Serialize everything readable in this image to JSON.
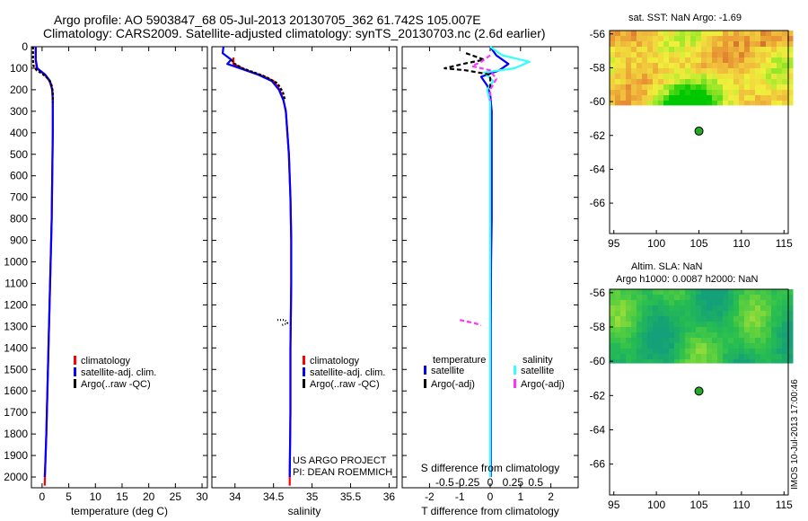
{
  "title_line1": "Argo profile: AO 5903847_68 05-Jul-2013 20130705_362 61.742S 105.007E",
  "title_line2": "Climatology: CARS2009. Satellite-adjusted climatology: synTS_20130703.nc (2.6d earlier)",
  "credit_line1": "US ARGO PROJECT",
  "credit_line2": "PI: DEAN ROEMMICH",
  "stamp": "IMOS 10-Jul-2013 17:00:46",
  "colors": {
    "climatology": "#ff0000",
    "satellite": "#0000ff",
    "argo": "#000000",
    "sal_satellite": "#33ffff",
    "sal_argo": "#ff33ff",
    "float": "#22aa22"
  },
  "chart_data": [
    {
      "type": "line",
      "id": "temperature",
      "xlabel": "temperature (deg C)",
      "ylabel": "",
      "xlim": [
        -2,
        31
      ],
      "ylim": [
        2050,
        0
      ],
      "xticks": [
        0,
        5,
        10,
        15,
        20,
        25,
        30
      ],
      "yticks": [
        0,
        100,
        200,
        300,
        400,
        500,
        600,
        700,
        800,
        900,
        1000,
        1100,
        1200,
        1300,
        1400,
        1500,
        1600,
        1700,
        1800,
        1900,
        2000
      ],
      "legend": {
        "position": "bottom-right",
        "entries": [
          "climatology",
          "satellite-adj. clim.",
          "Argo(..raw -QC)"
        ]
      },
      "series": [
        {
          "name": "climatology",
          "color": "#ff0000",
          "dash": "",
          "points": [
            [
              -1.2,
              0
            ],
            [
              -1.2,
              60
            ],
            [
              -1.0,
              100
            ],
            [
              0.5,
              130
            ],
            [
              1.4,
              160
            ],
            [
              1.9,
              200
            ],
            [
              2.0,
              250
            ],
            [
              2.0,
              300
            ],
            [
              2.0,
              400
            ],
            [
              1.9,
              600
            ],
            [
              1.8,
              800
            ],
            [
              1.6,
              1000
            ],
            [
              1.4,
              1200
            ],
            [
              1.2,
              1400
            ],
            [
              1.0,
              1600
            ],
            [
              0.8,
              1800
            ],
            [
              0.6,
              1950
            ],
            [
              0.5,
              2040
            ]
          ]
        },
        {
          "name": "satellite-adj. clim.",
          "color": "#0000ff",
          "dash": "",
          "points": [
            [
              -1.2,
              0
            ],
            [
              -1.2,
              60
            ],
            [
              -0.9,
              100
            ],
            [
              0.6,
              130
            ],
            [
              1.5,
              160
            ],
            [
              1.9,
              200
            ],
            [
              2.0,
              250
            ],
            [
              2.0,
              300
            ],
            [
              2.0,
              400
            ],
            [
              1.9,
              600
            ],
            [
              1.8,
              800
            ],
            [
              1.6,
              1000
            ],
            [
              1.4,
              1200
            ],
            [
              1.2,
              1400
            ],
            [
              1.0,
              1600
            ],
            [
              0.8,
              1800
            ],
            [
              0.6,
              1950
            ],
            [
              0.5,
              2000
            ]
          ]
        },
        {
          "name": "Argo(..raw -QC)",
          "color": "#000000",
          "dash": "3 2",
          "points": [
            [
              -1.7,
              0
            ],
            [
              -1.7,
              60
            ],
            [
              -1.6,
              90
            ],
            [
              -1.0,
              110
            ],
            [
              0.0,
              125
            ],
            [
              1.2,
              150
            ],
            [
              1.8,
              180
            ],
            [
              2.0,
              210
            ],
            [
              2.0,
              260
            ]
          ]
        }
      ]
    },
    {
      "type": "line",
      "id": "salinity",
      "xlabel": "salinity",
      "ylabel": "",
      "xlim": [
        33.7,
        36.1
      ],
      "ylim": [
        2050,
        0
      ],
      "xticks": [
        34,
        34.5,
        35,
        35.5,
        36
      ],
      "legend": {
        "position": "bottom-right",
        "entries": [
          "climatology",
          "satellite-adj. clim.",
          "Argo(..raw -QC)"
        ]
      },
      "series": [
        {
          "name": "climatology",
          "color": "#ff0000",
          "dash": "",
          "points": [
            [
              33.98,
              50
            ],
            [
              33.98,
              80
            ],
            [
              34.15,
              110
            ],
            [
              34.35,
              135
            ],
            [
              34.5,
              160
            ],
            [
              34.58,
              200
            ],
            [
              34.63,
              250
            ],
            [
              34.66,
              300
            ],
            [
              34.68,
              400
            ],
            [
              34.7,
              500
            ],
            [
              34.72,
              700
            ],
            [
              34.73,
              900
            ],
            [
              34.73,
              1100
            ],
            [
              34.72,
              1400
            ],
            [
              34.72,
              1700
            ],
            [
              34.71,
              2000
            ],
            [
              34.71,
              2040
            ]
          ]
        },
        {
          "name": "satellite-adj. clim.",
          "color": "#0000ff",
          "dash": "",
          "points": [
            [
              33.85,
              0
            ],
            [
              33.84,
              30
            ],
            [
              33.95,
              60
            ],
            [
              33.9,
              80
            ],
            [
              34.1,
              105
            ],
            [
              34.3,
              130
            ],
            [
              34.48,
              160
            ],
            [
              34.57,
              200
            ],
            [
              34.63,
              250
            ],
            [
              34.66,
              300
            ],
            [
              34.68,
              400
            ],
            [
              34.7,
              500
            ],
            [
              34.72,
              700
            ],
            [
              34.73,
              900
            ],
            [
              34.73,
              1100
            ],
            [
              34.72,
              1400
            ],
            [
              34.72,
              1700
            ],
            [
              34.71,
              2000
            ]
          ]
        },
        {
          "name": "Argo(..raw -QC)",
          "color": "#000000",
          "dash": "3 2",
          "points": [
            [
              33.95,
              60
            ],
            [
              34.0,
              80
            ],
            [
              34.1,
              100
            ],
            [
              34.25,
              120
            ],
            [
              34.4,
              140
            ],
            [
              34.55,
              170
            ],
            [
              34.62,
              210
            ],
            [
              34.65,
              250
            ]
          ]
        },
        {
          "name": "Argo(..raw -QC) 1270m",
          "color": "#000000",
          "dash": "1 2",
          "points": [
            [
              34.55,
              1270
            ],
            [
              34.65,
              1270
            ],
            [
              34.68,
              1285
            ],
            [
              34.6,
              1295
            ]
          ]
        }
      ]
    },
    {
      "type": "line",
      "id": "difference",
      "xlabel": "T difference from climatology",
      "xlabel_top": "S difference from climatology",
      "ylabel": "",
      "xlim": [
        -2.9,
        2.9
      ],
      "ylim": [
        2050,
        0
      ],
      "xticks": [
        -2,
        -1,
        0,
        1,
        2
      ],
      "xticks_top": [
        "-0.5",
        "-0.25",
        "0",
        "0.25",
        "0.5"
      ],
      "legend": {
        "position": "bottom",
        "entries": [
          "temperature",
          "salinity",
          "satellite",
          "Argo(-adj)"
        ]
      },
      "series": [
        {
          "name": "temperature satellite",
          "color": "#0000ff",
          "dash": "",
          "points": [
            [
              0,
              0
            ],
            [
              0.2,
              40
            ],
            [
              0.6,
              80
            ],
            [
              0.3,
              110
            ],
            [
              -0.3,
              140
            ],
            [
              -0.1,
              180
            ],
            [
              0.0,
              220
            ],
            [
              0.05,
              300
            ],
            [
              0.05,
              400
            ],
            [
              0.05,
              600
            ],
            [
              0.05,
              800
            ],
            [
              0.03,
              1000
            ],
            [
              0.02,
              1300
            ],
            [
              0.02,
              1600
            ],
            [
              0.02,
              1900
            ],
            [
              0.02,
              2000
            ]
          ]
        },
        {
          "name": "salinity satellite",
          "color": "#33ffff",
          "dash": "",
          "points": [
            [
              0,
              0
            ],
            [
              0.4,
              40
            ],
            [
              1.3,
              70
            ],
            [
              0.8,
              100
            ],
            [
              -0.2,
              120
            ],
            [
              0.1,
              160
            ],
            [
              -0.1,
              200
            ],
            [
              0.0,
              260
            ],
            [
              0.0,
              350
            ],
            [
              0.0,
              500
            ],
            [
              0.0,
              700
            ],
            [
              0.0,
              1000
            ],
            [
              0.0,
              1300
            ],
            [
              0.0,
              1600
            ],
            [
              0.0,
              1900
            ],
            [
              0.0,
              2000
            ]
          ]
        },
        {
          "name": "temperature Argo(-adj)",
          "color": "#000000",
          "dash": "5 3",
          "points": [
            [
              -0.8,
              30
            ],
            [
              -0.2,
              60
            ],
            [
              -0.9,
              80
            ],
            [
              -1.5,
              100
            ],
            [
              -0.8,
              110
            ],
            [
              0.0,
              130
            ],
            [
              0.0,
              200
            ]
          ]
        },
        {
          "name": "salinity Argo(-adj)",
          "color": "#ff33ff",
          "dash": "5 3",
          "points": [
            [
              0.0,
              40
            ],
            [
              -0.3,
              70
            ],
            [
              -0.6,
              90
            ],
            [
              0.0,
              110
            ],
            [
              0.2,
              150
            ],
            [
              0.0,
              200
            ],
            [
              0.0,
              250
            ]
          ]
        },
        {
          "name": "salinity Argo(-adj) 1270m",
          "color": "#ff33ff",
          "dash": "5 3",
          "points": [
            [
              -1.0,
              1270
            ],
            [
              -0.5,
              1285
            ],
            [
              -0.3,
              1295
            ]
          ]
        }
      ]
    },
    {
      "type": "heatmap",
      "id": "sst-map",
      "title": "sat. SST: NaN  Argo: -1.69",
      "xlim": [
        94.5,
        115.5
      ],
      "ylim": [
        -67.8,
        -55.8
      ],
      "xticks": [
        95,
        100,
        105,
        110,
        115
      ],
      "yticks": [
        -56,
        -58,
        -60,
        -62,
        -64,
        -66
      ],
      "data_lat_range": [
        -60.2,
        -55.8
      ],
      "palette": "sst",
      "float_position": [
        105.007,
        -61.742
      ]
    },
    {
      "type": "heatmap",
      "id": "sla-map",
      "title_line1": "Altim. SLA: NaN",
      "title_line2": "Argo h1000: 0.0087 h2000: NaN",
      "xlim": [
        94.5,
        115.5
      ],
      "ylim": [
        -67.8,
        -55.8
      ],
      "xticks": [
        95,
        100,
        105,
        110,
        115
      ],
      "yticks": [
        -56,
        -58,
        -60,
        -62,
        -64,
        -66
      ],
      "data_lat_range": [
        -60.1,
        -55.8
      ],
      "palette": "sla",
      "float_position": [
        105.007,
        -61.742
      ]
    }
  ]
}
